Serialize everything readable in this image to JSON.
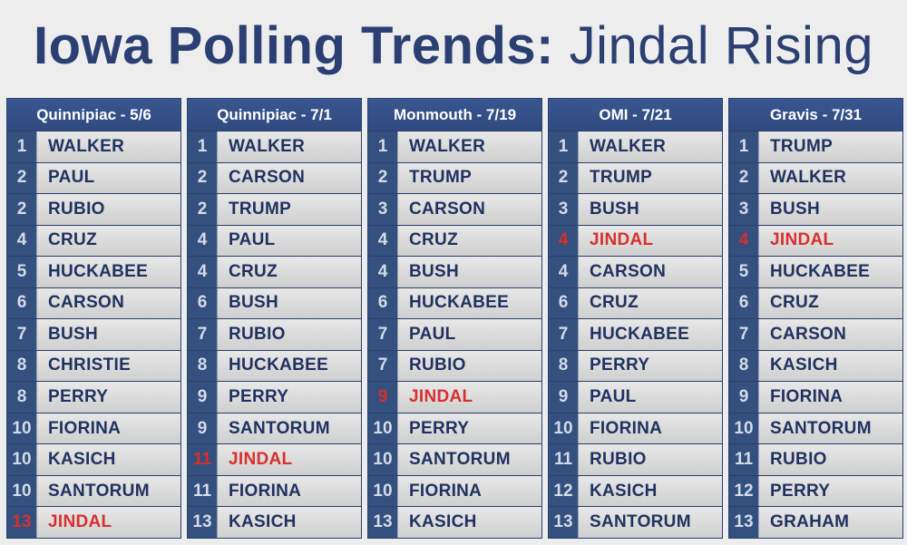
{
  "title": {
    "bold": "Iowa Polling Trends:",
    "light": "Jindal Rising"
  },
  "colors": {
    "navy": "#2b3f73",
    "highlight": "#d8302e"
  },
  "polls": [
    {
      "header": "Quinnipiac - 5/6",
      "rows": [
        {
          "rank": "1",
          "name": "WALKER"
        },
        {
          "rank": "2",
          "name": "PAUL"
        },
        {
          "rank": "2",
          "name": "RUBIO"
        },
        {
          "rank": "4",
          "name": "CRUZ"
        },
        {
          "rank": "5",
          "name": "HUCKABEE"
        },
        {
          "rank": "6",
          "name": "CARSON"
        },
        {
          "rank": "7",
          "name": "BUSH"
        },
        {
          "rank": "8",
          "name": "CHRISTIE"
        },
        {
          "rank": "8",
          "name": "PERRY"
        },
        {
          "rank": "10",
          "name": "FIORINA"
        },
        {
          "rank": "10",
          "name": "KASICH"
        },
        {
          "rank": "10",
          "name": "SANTORUM"
        },
        {
          "rank": "13",
          "name": "JINDAL",
          "highlight": true
        }
      ]
    },
    {
      "header": "Quinnipiac - 7/1",
      "rows": [
        {
          "rank": "1",
          "name": "WALKER"
        },
        {
          "rank": "2",
          "name": "CARSON"
        },
        {
          "rank": "2",
          "name": "TRUMP"
        },
        {
          "rank": "4",
          "name": "PAUL"
        },
        {
          "rank": "4",
          "name": "CRUZ"
        },
        {
          "rank": "6",
          "name": "BUSH"
        },
        {
          "rank": "7",
          "name": "RUBIO"
        },
        {
          "rank": "8",
          "name": "HUCKABEE"
        },
        {
          "rank": "9",
          "name": "PERRY"
        },
        {
          "rank": "9",
          "name": "SANTORUM"
        },
        {
          "rank": "11",
          "name": "JINDAL",
          "highlight": true
        },
        {
          "rank": "11",
          "name": "FIORINA"
        },
        {
          "rank": "13",
          "name": "KASICH"
        }
      ]
    },
    {
      "header": "Monmouth - 7/19",
      "rows": [
        {
          "rank": "1",
          "name": "WALKER"
        },
        {
          "rank": "2",
          "name": "TRUMP"
        },
        {
          "rank": "3",
          "name": "CARSON"
        },
        {
          "rank": "4",
          "name": "CRUZ"
        },
        {
          "rank": "4",
          "name": "BUSH"
        },
        {
          "rank": "6",
          "name": "HUCKABEE"
        },
        {
          "rank": "7",
          "name": "PAUL"
        },
        {
          "rank": "7",
          "name": "RUBIO"
        },
        {
          "rank": "9",
          "name": "JINDAL",
          "highlight": true
        },
        {
          "rank": "10",
          "name": "PERRY"
        },
        {
          "rank": "10",
          "name": "SANTORUM"
        },
        {
          "rank": "10",
          "name": "FIORINA"
        },
        {
          "rank": "13",
          "name": "KASICH"
        }
      ]
    },
    {
      "header": "OMI - 7/21",
      "rows": [
        {
          "rank": "1",
          "name": "WALKER"
        },
        {
          "rank": "2",
          "name": "TRUMP"
        },
        {
          "rank": "3",
          "name": "BUSH"
        },
        {
          "rank": "4",
          "name": "JINDAL",
          "highlight": true
        },
        {
          "rank": "4",
          "name": "CARSON"
        },
        {
          "rank": "6",
          "name": "CRUZ"
        },
        {
          "rank": "7",
          "name": "HUCKABEE"
        },
        {
          "rank": "8",
          "name": "PERRY"
        },
        {
          "rank": "9",
          "name": "PAUL"
        },
        {
          "rank": "10",
          "name": "FIORINA"
        },
        {
          "rank": "11",
          "name": "RUBIO"
        },
        {
          "rank": "12",
          "name": "KASICH"
        },
        {
          "rank": "13",
          "name": "SANTORUM"
        }
      ]
    },
    {
      "header": "Gravis - 7/31",
      "rows": [
        {
          "rank": "1",
          "name": "TRUMP"
        },
        {
          "rank": "2",
          "name": "WALKER"
        },
        {
          "rank": "3",
          "name": "BUSH"
        },
        {
          "rank": "4",
          "name": "JINDAL",
          "highlight": true
        },
        {
          "rank": "5",
          "name": "HUCKABEE"
        },
        {
          "rank": "6",
          "name": "CRUZ"
        },
        {
          "rank": "7",
          "name": "CARSON"
        },
        {
          "rank": "8",
          "name": "KASICH"
        },
        {
          "rank": "9",
          "name": "FIORINA"
        },
        {
          "rank": "10",
          "name": "SANTORUM"
        },
        {
          "rank": "11",
          "name": "RUBIO"
        },
        {
          "rank": "12",
          "name": "PERRY"
        },
        {
          "rank": "13",
          "name": "GRAHAM"
        }
      ]
    }
  ]
}
